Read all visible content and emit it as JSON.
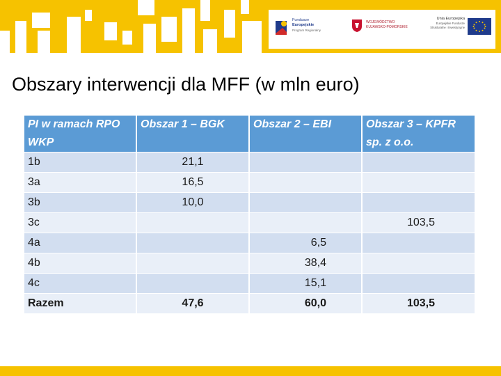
{
  "header": {
    "logos": {
      "fundusze": {
        "line1": "Fundusze",
        "line2": "Europejskie",
        "line3": "Program Regionalny"
      },
      "wojewodztwo": {
        "line1": "WOJEWÓDZTWO",
        "line2": "KUJAWSKO-POMORSKIE"
      },
      "ue": {
        "line1": "Unia Europejska",
        "line2": "Europejskie Fundusze",
        "line3": "Strukturalne i Inwestycyjne"
      }
    },
    "colors": {
      "banner": "#f6c200",
      "table_header": "#5b9bd5",
      "row_odd": "#d2def0",
      "row_even": "#e9eff8"
    }
  },
  "title": "Obszary interwencji dla MFF (w mln euro)",
  "table": {
    "columns": [
      "PI w ramach RPO WKP",
      "Obszar 1 – BGK",
      "Obszar 2 – EBI",
      "Obszar 3 – KPFR sp. z o.o."
    ],
    "rows": [
      [
        "1b",
        "21,1",
        "",
        ""
      ],
      [
        "3a",
        "16,5",
        "",
        ""
      ],
      [
        "3b",
        "10,0",
        "",
        ""
      ],
      [
        "3c",
        "",
        "",
        "103,5"
      ],
      [
        "4a",
        "",
        "6,5",
        ""
      ],
      [
        "4b",
        "",
        "38,4",
        ""
      ],
      [
        "4c",
        "",
        "15,1",
        ""
      ],
      [
        "Razem",
        "47,6",
        "60,0",
        "103,5"
      ]
    ]
  }
}
